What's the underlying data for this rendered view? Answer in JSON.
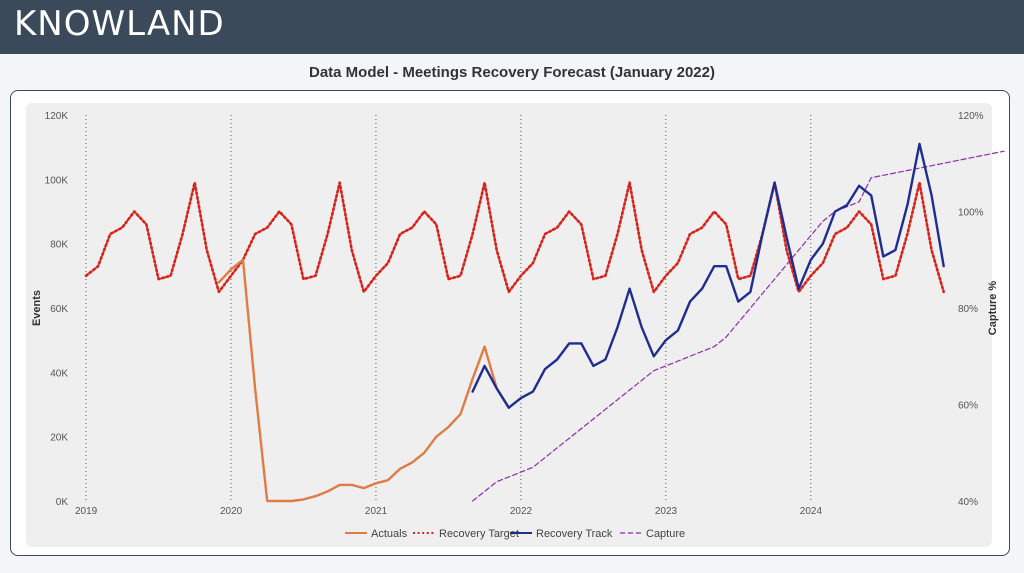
{
  "header": {
    "logo_text": "KNOWLAND"
  },
  "colors": {
    "header_bg": "#3b4a5a",
    "actuals": "#e07b45",
    "recovery_target": "#d6231c",
    "recovery_track": "#1f2d8f",
    "capture": "#8e2ab3"
  },
  "chart_data": {
    "type": "line",
    "title": "Data Model - Meetings Recovery Forecast (January 2022)",
    "ylabel": "Events",
    "y2label": "Capture %",
    "ylim": [
      0,
      120000
    ],
    "y2lim": [
      40,
      120
    ],
    "y_ticks": [
      "0K",
      "20K",
      "40K",
      "60K",
      "80K",
      "100K",
      "120K"
    ],
    "y2_ticks": [
      "40%",
      "60%",
      "80%",
      "100%",
      "120%"
    ],
    "x_ticks": [
      "2019",
      "2020",
      "2021",
      "2022",
      "2023",
      "2024"
    ],
    "x_start": "2019-01",
    "grid": "vertical dotted at year boundaries",
    "legend_position": "bottom",
    "series": [
      {
        "name": "Actuals",
        "style": "solid",
        "axis": "left",
        "start": "2019-12",
        "values": [
          68000,
          72000,
          75000,
          35000,
          0,
          0,
          0,
          500,
          1500,
          3000,
          5000,
          5000,
          4000,
          5500,
          6500,
          10000,
          12000,
          15000,
          20000,
          23000,
          27000,
          38000,
          48000,
          35000,
          29000
        ]
      },
      {
        "name": "Recovery Target",
        "style": "dotted",
        "axis": "left",
        "start": "2019-01",
        "values": [
          70000,
          73000,
          83000,
          85000,
          90000,
          86000,
          69000,
          70000,
          83000,
          99000,
          78000,
          65000,
          70000,
          75000,
          83000,
          85000,
          90000,
          86000,
          69000,
          70000,
          83000,
          99000,
          78000,
          65000,
          70000,
          74000,
          83000,
          85000,
          90000,
          86000,
          69000,
          70000,
          83000,
          99000,
          78000,
          65000,
          70000,
          74000,
          83000,
          85000,
          90000,
          86000,
          69000,
          70000,
          83000,
          99000,
          78000,
          65000,
          70000,
          74000,
          83000,
          85000,
          90000,
          86000,
          69000,
          70000,
          83000,
          99000,
          78000,
          65000,
          70000,
          74000,
          83000,
          85000,
          90000,
          86000,
          69000,
          70000,
          83000,
          99000,
          78000,
          65000
        ]
      },
      {
        "name": "Recovery Track",
        "style": "solid",
        "axis": "left",
        "start": "2021-09",
        "values": [
          34000,
          42000,
          35000,
          29000,
          32000,
          34000,
          41000,
          44000,
          49000,
          49000,
          42000,
          44000,
          54000,
          66000,
          54000,
          45000,
          50000,
          53000,
          62000,
          66000,
          73000,
          73000,
          62000,
          65000,
          83000,
          99000,
          82000,
          66000,
          75000,
          80000,
          90000,
          92000,
          98000,
          95000,
          76000,
          78000,
          92000,
          111000,
          95000,
          73000
        ]
      },
      {
        "name": "Capture",
        "style": "dashed",
        "axis": "right",
        "start": "2021-09",
        "values": [
          40,
          42,
          44,
          45,
          46,
          47,
          49,
          51,
          53,
          55,
          57,
          59,
          61,
          63,
          65,
          67,
          68,
          69,
          70,
          71,
          72,
          74,
          77,
          80,
          83,
          86,
          89,
          92,
          95,
          98,
          100,
          101,
          102,
          107,
          107.5,
          108,
          108.5,
          109,
          109.5,
          110,
          110.5,
          111,
          111.5,
          112,
          112.5
        ]
      }
    ]
  }
}
